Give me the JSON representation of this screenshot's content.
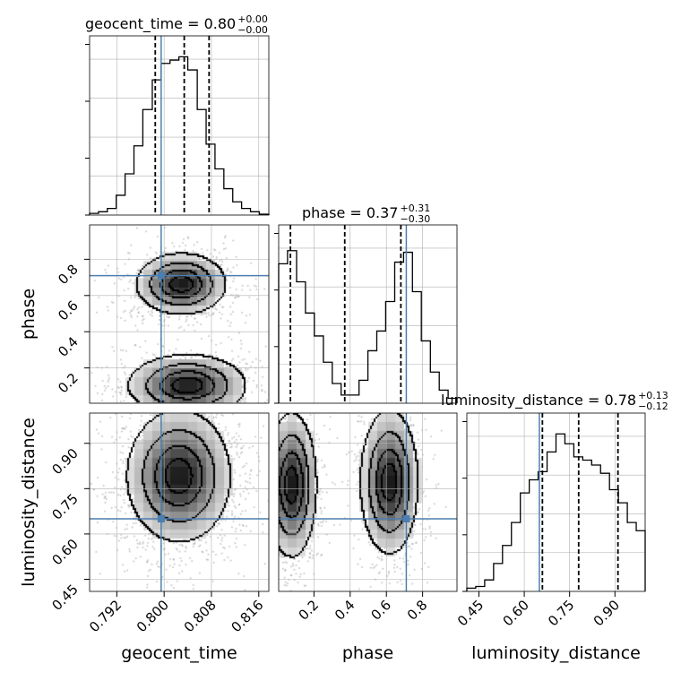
{
  "chart_data": {
    "type": "corner",
    "parameters": [
      "geocent_time",
      "phase",
      "luminosity_distance"
    ],
    "truth": {
      "geocent_time": 0.7995,
      "phase": 0.71,
      "luminosity_distance": 0.65
    },
    "titles": [
      {
        "main": "geocent_time = 0.80",
        "plus": "+0.00",
        "minus": "−0.00"
      },
      {
        "main": "phase = 0.37",
        "plus": "+0.31",
        "minus": "−0.30"
      },
      {
        "main": "luminosity_distance = 0.78",
        "plus": "+0.13",
        "minus": "−0.12"
      }
    ],
    "xlabels": [
      "geocent_time",
      "phase",
      "luminosity_distance"
    ],
    "ylabels": [
      "",
      "phase",
      "luminosity_distance"
    ],
    "ranges": {
      "geocent_time": [
        0.7874,
        0.8177
      ],
      "phase": [
        0.005,
        0.99
      ],
      "luminosity_distance": [
        0.41,
        1.0
      ]
    },
    "ticks": {
      "geocent_time": [
        "0.792",
        "0.800",
        "0.808",
        "0.816"
      ],
      "phase": [
        "0.2",
        "0.4",
        "0.6",
        "0.8"
      ],
      "luminosity_distance": [
        "0.45",
        "0.60",
        "0.75",
        "0.90"
      ]
    },
    "grid": true,
    "histograms": {
      "geocent_time": {
        "edges": [
          0.7874,
          0.7889,
          0.7904,
          0.7919,
          0.7934,
          0.7949,
          0.7964,
          0.798,
          0.7995,
          0.801,
          0.8025,
          0.804,
          0.8056,
          0.8071,
          0.8086,
          0.8101,
          0.8116,
          0.8131,
          0.8146,
          0.8161,
          0.8177
        ],
        "counts": [
          0.01,
          0.02,
          0.04,
          0.12,
          0.25,
          0.42,
          0.64,
          0.82,
          0.92,
          0.94,
          0.96,
          0.88,
          0.64,
          0.43,
          0.28,
          0.16,
          0.08,
          0.04,
          0.02,
          0.005
        ],
        "quantiles": [
          0.7985,
          0.8034,
          0.8076
        ]
      },
      "phase": {
        "edges": [
          0.005,
          0.054,
          0.104,
          0.153,
          0.202,
          0.252,
          0.301,
          0.35,
          0.399,
          0.449,
          0.498,
          0.547,
          0.596,
          0.646,
          0.695,
          0.744,
          0.793,
          0.843,
          0.892,
          0.941,
          0.99
        ],
        "counts": [
          0.85,
          0.93,
          0.74,
          0.55,
          0.41,
          0.25,
          0.12,
          0.05,
          0.05,
          0.14,
          0.32,
          0.44,
          0.62,
          0.86,
          0.92,
          0.68,
          0.38,
          0.19,
          0.08,
          0.03
        ],
        "quantiles": [
          0.07,
          0.37,
          0.68
        ]
      },
      "luminosity_distance": {
        "edges": [
          0.41,
          0.4395,
          0.469,
          0.4985,
          0.528,
          0.5575,
          0.587,
          0.6165,
          0.646,
          0.6755,
          0.705,
          0.7345,
          0.764,
          0.7935,
          0.823,
          0.8525,
          0.882,
          0.9115,
          0.941,
          0.9705,
          1.0
        ],
        "counts": [
          0.02,
          0.03,
          0.07,
          0.17,
          0.28,
          0.42,
          0.6,
          0.68,
          0.73,
          0.85,
          0.96,
          0.9,
          0.82,
          0.8,
          0.77,
          0.72,
          0.62,
          0.54,
          0.42,
          0.37
        ],
        "quantiles": [
          0.66,
          0.78,
          0.91
        ]
      }
    },
    "density_2d": [
      {
        "x": "geocent_time",
        "y": "phase",
        "blobs": [
          {
            "cx": 0.803,
            "cy": 0.66,
            "sx": 0.0038,
            "sy": 0.085
          },
          {
            "cx": 0.804,
            "cy": 0.1,
            "sx": 0.005,
            "sy": 0.085
          }
        ]
      },
      {
        "x": "geocent_time",
        "y": "luminosity_distance",
        "blobs": [
          {
            "cx": 0.8026,
            "cy": 0.79,
            "sx": 0.0044,
            "sy": 0.11
          }
        ]
      },
      {
        "x": "phase",
        "y": "luminosity_distance",
        "blobs": [
          {
            "cx": 0.08,
            "cy": 0.76,
            "sx": 0.07,
            "sy": 0.12
          },
          {
            "cx": 0.62,
            "cy": 0.77,
            "sx": 0.08,
            "sy": 0.12
          }
        ]
      }
    ],
    "colors": {
      "truth": "#4c7eaf",
      "hist": "#000000",
      "points": "#9a9a9a",
      "grid": "#b0b0b0"
    }
  }
}
